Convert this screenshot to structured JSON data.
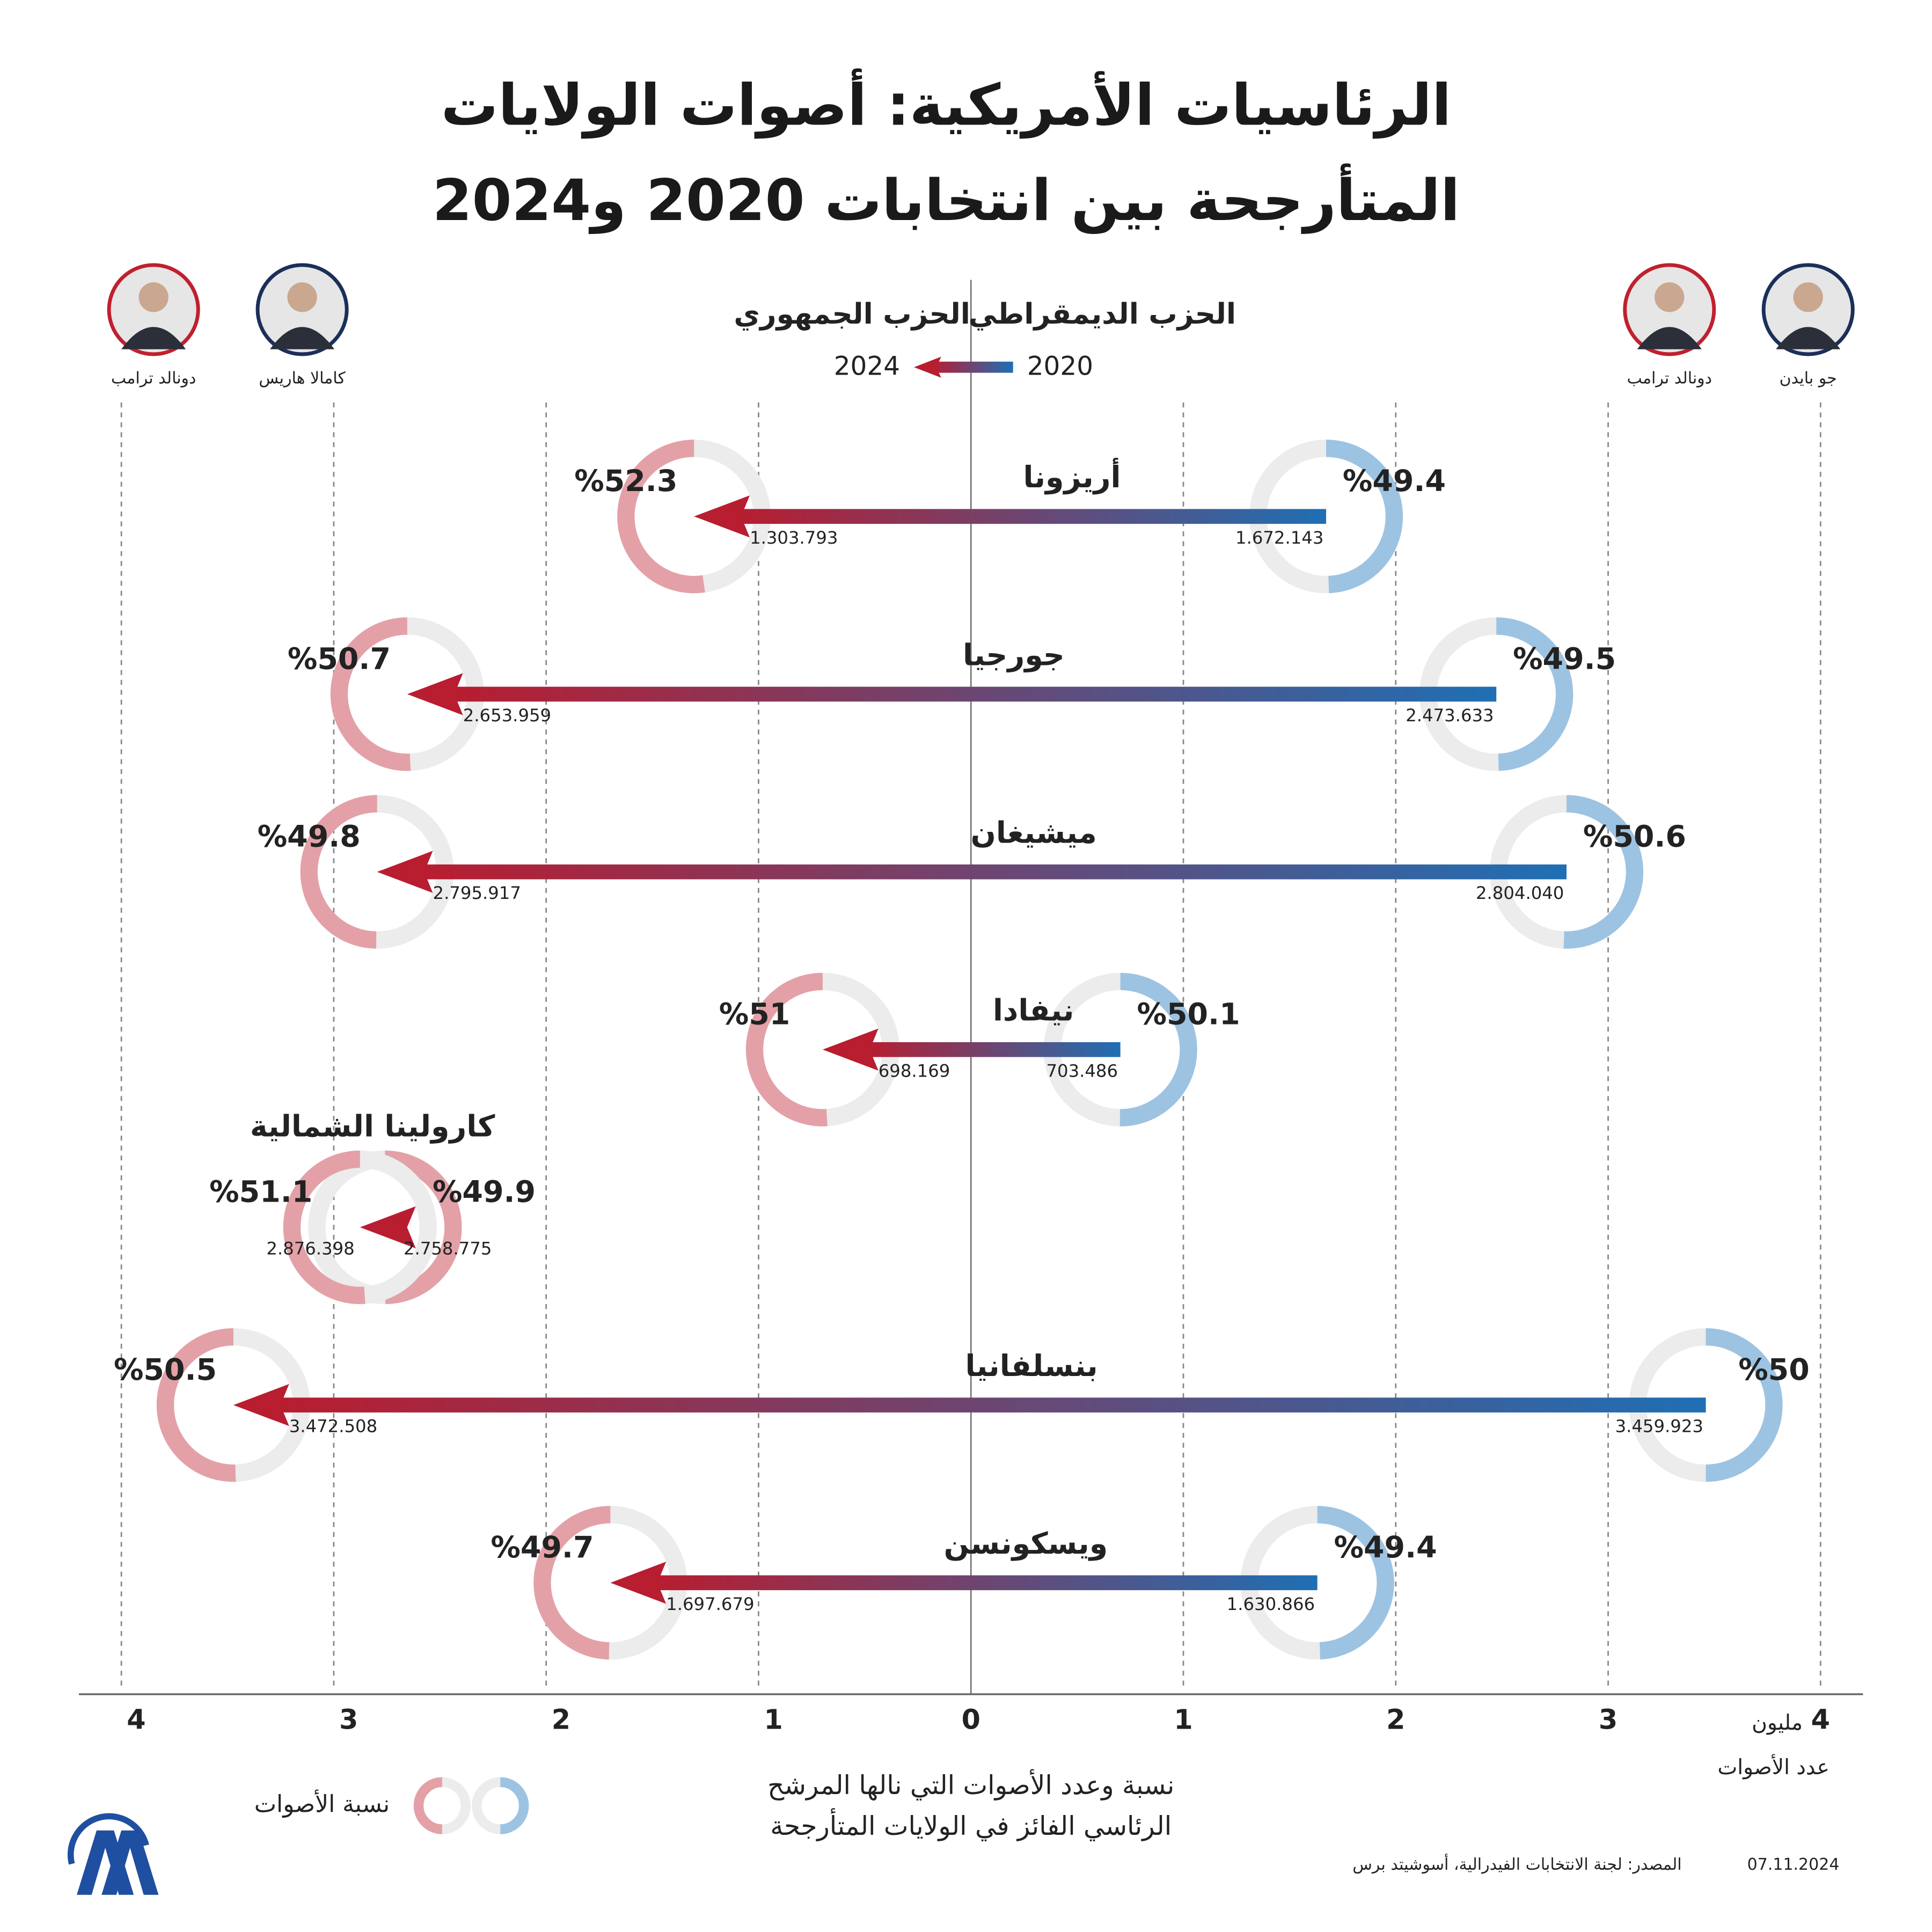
{
  "chart_data": {
    "type": "arrow",
    "title_lines": [
      "الرئاسيات الأمريكية: أصوات الولايات",
      "المتأرجحة بين انتخابات 2020 و2024"
    ],
    "candidates_2020": [
      {
        "name": "جو بايدن",
        "color": "#1c2f5a"
      },
      {
        "name": "دونالد ترامب",
        "color": "#c0202f"
      }
    ],
    "candidates_2024": [
      {
        "name": "كامالا هاريس",
        "color": "#1c2f5a"
      },
      {
        "name": "دونالد ترامب",
        "color": "#c0202f"
      }
    ],
    "categories": [
      "أريزونا",
      "جورجيا",
      "ميشيغان",
      "نيفادا",
      "كارولينا الشمالية",
      "بنسلفانيا",
      "ويسكونسن"
    ],
    "series": [
      {
        "name": "الحزب الديمقراطي",
        "year": "2020",
        "side": "right",
        "color": "#1f6fb4",
        "ring_color": "#9dc3e2",
        "values": [
          1.672143,
          2.473633,
          2.80404,
          0.703486,
          null,
          3.459923,
          1.630866
        ],
        "value_labels": [
          "1.672.143",
          "2.473.633",
          "2.804.040",
          "703.486",
          null,
          "3.459.923",
          "1.630.866"
        ],
        "shares": [
          49.4,
          49.5,
          50.6,
          50.1,
          null,
          50,
          49.4
        ],
        "share_labels": [
          "%49.4",
          "%49.5",
          "%50.6",
          "%50.1",
          null,
          "%50",
          "%49.4"
        ]
      },
      {
        "name": "الحزب الجمهوري",
        "year": "2020",
        "side": "left",
        "color": "#b81d30",
        "ring_color": "#e3a1a7",
        "values": [
          null,
          null,
          null,
          null,
          2.758775,
          null,
          null
        ],
        "value_labels": [
          null,
          null,
          null,
          null,
          "2.758.775",
          null,
          null
        ],
        "shares": [
          null,
          null,
          null,
          null,
          49.9,
          null,
          null
        ],
        "share_labels": [
          null,
          null,
          null,
          null,
          "%49.9",
          null,
          null
        ]
      },
      {
        "name": "الحزب الجمهوري",
        "year": "2024",
        "side": "left",
        "color": "#b81d30",
        "ring_color": "#e3a1a7",
        "values": [
          1.303793,
          2.653959,
          2.795917,
          0.698169,
          2.876398,
          3.472508,
          1.697679
        ],
        "value_labels": [
          "1.303.793",
          "2.653.959",
          "2.795.917",
          "698.169",
          "2.876.398",
          "3.472.508",
          "1.697.679"
        ],
        "shares": [
          52.3,
          50.7,
          49.8,
          51,
          51.1,
          50.5,
          49.7
        ],
        "share_labels": [
          "%52.3",
          "%50.7",
          "%49.8",
          "%51",
          "%51.1",
          "%50.5",
          "%49.7"
        ]
      }
    ],
    "xlim": [
      -4.2,
      4.2
    ],
    "xticks": [
      {
        "value": -4,
        "label": "4"
      },
      {
        "value": -3,
        "label": "3"
      },
      {
        "value": -2,
        "label": "2"
      },
      {
        "value": -1,
        "label": "1"
      },
      0,
      1,
      2,
      3,
      4
    ],
    "x_unit": "مليون",
    "xlabel": "عدد الأصوات",
    "caption": [
      "نسبة وعدد الأصوات التي نالها المرشح",
      "الرئاسي الفائز في الولايات المتأرجحة"
    ],
    "ring_legend": "نسبة الأصوات",
    "source": "المصدر: لجنة الانتخابات الفيدرالية، أسوشيتد برس",
    "date": "07.11.2024"
  }
}
